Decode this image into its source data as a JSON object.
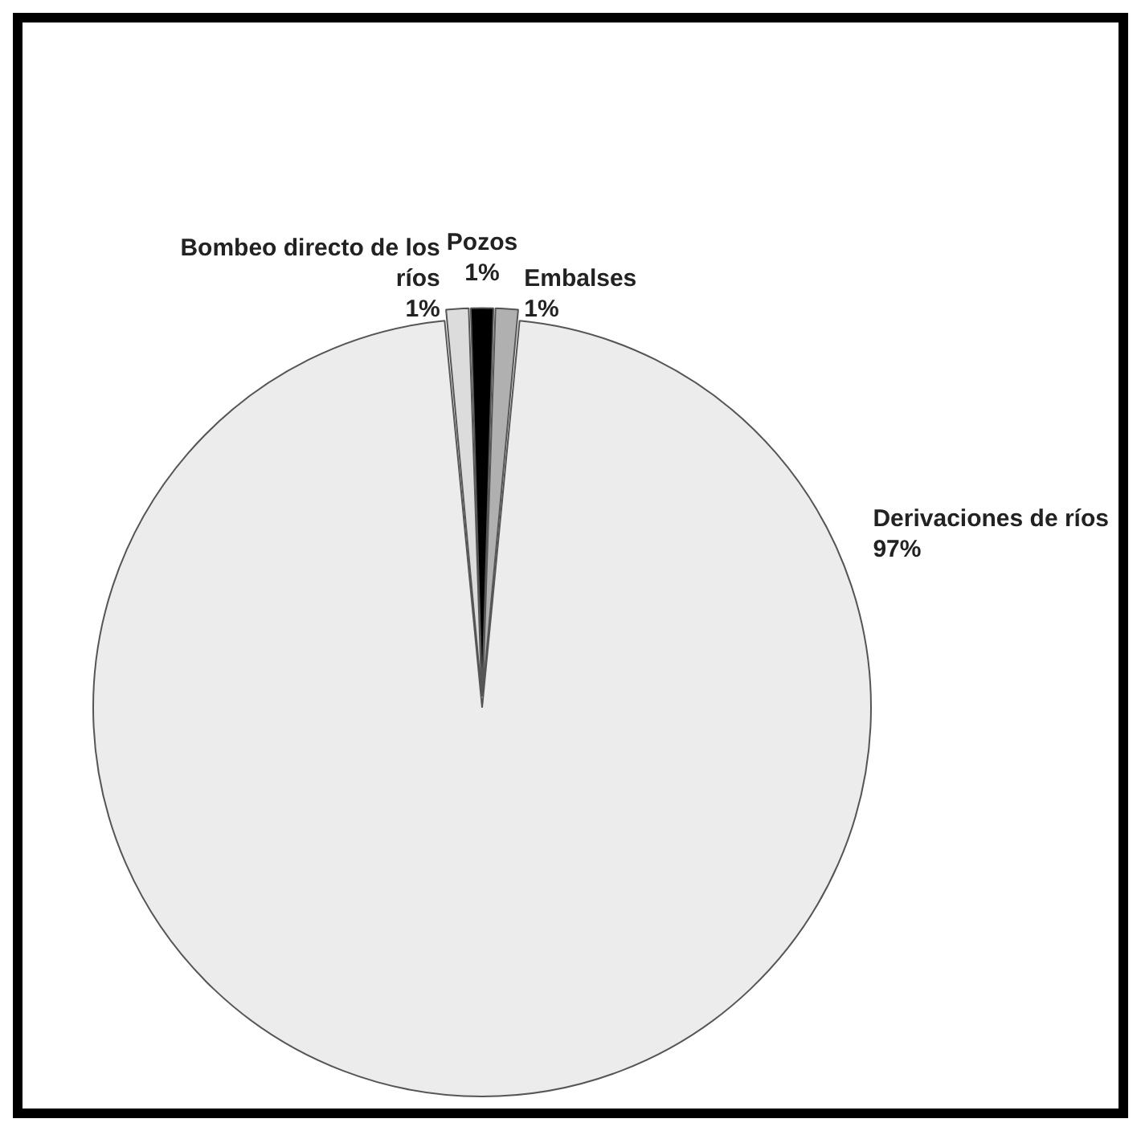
{
  "chart_data": {
    "type": "pie",
    "categories": [
      "Embalses",
      "Derivaciones de ríos",
      "Bombeo directo de los ríos",
      "Pozos"
    ],
    "values": [
      1,
      97,
      1,
      1
    ],
    "colors": [
      "#b0b0b0",
      "#ececec",
      "#dcdcdc",
      "#000000"
    ],
    "value_labels": [
      "1%",
      "97%",
      "1%",
      "1%"
    ],
    "legend": false
  }
}
